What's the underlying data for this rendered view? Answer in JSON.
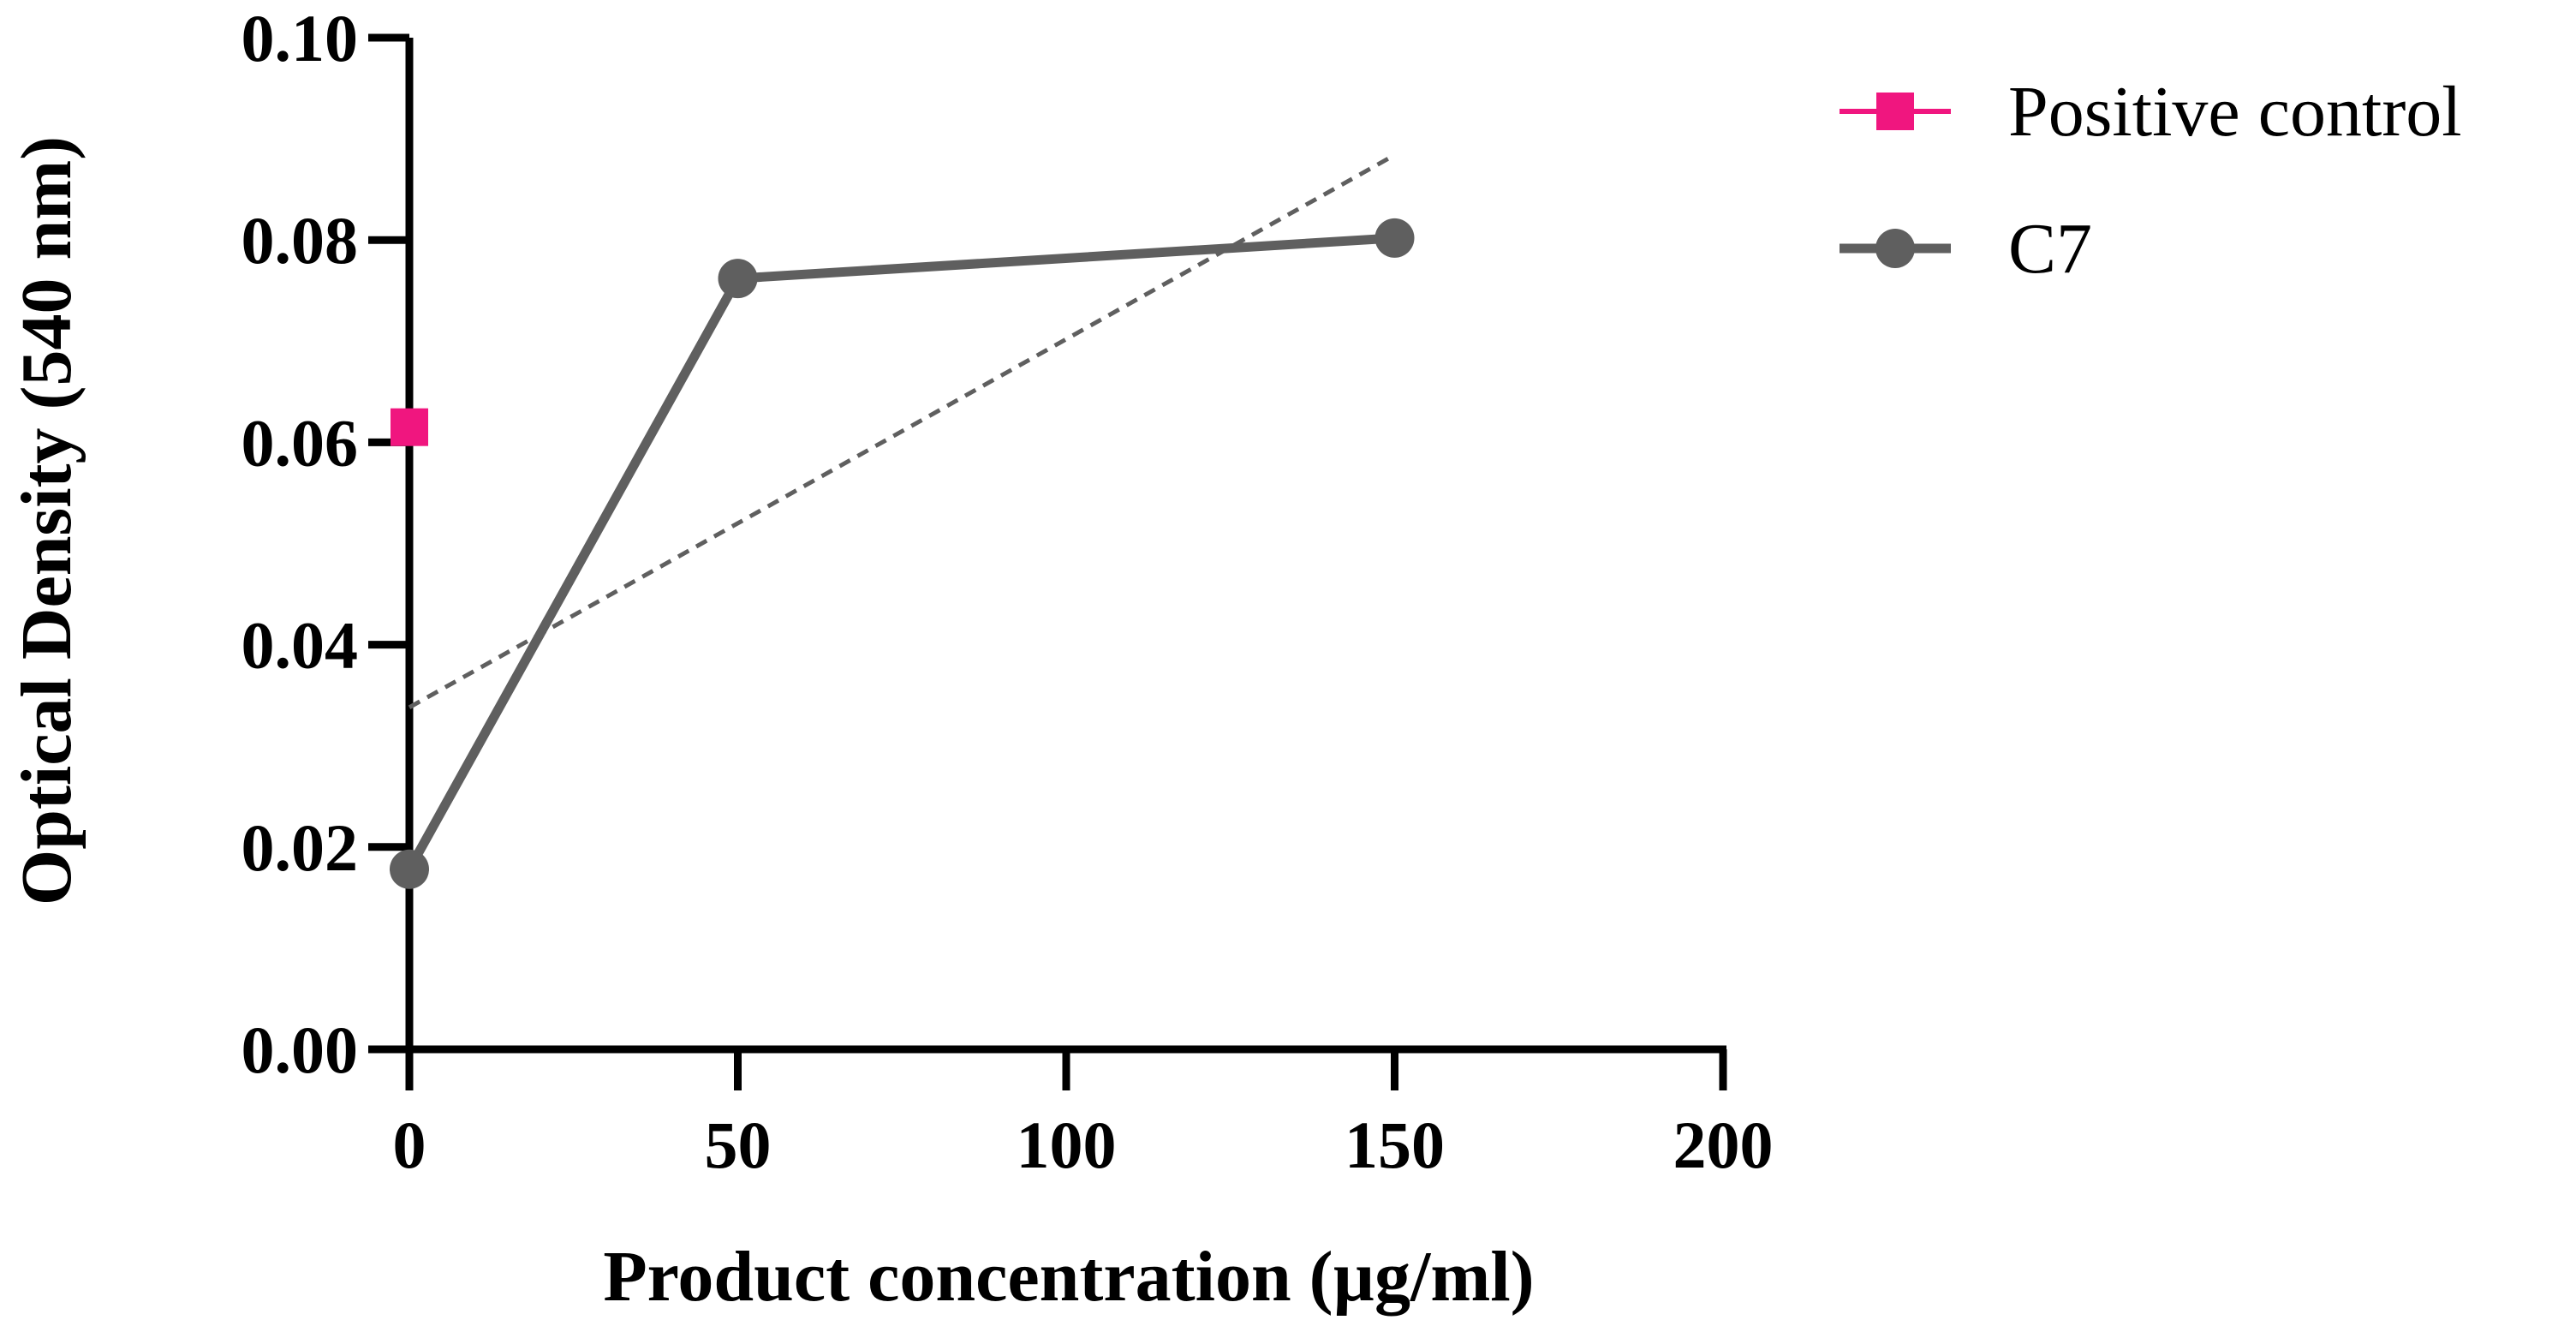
{
  "chart_data": {
    "type": "line",
    "title": "",
    "xlabel": "Product concentration (µg/ml)",
    "ylabel": "Optical Density (540 nm)",
    "xlim": [
      0,
      200
    ],
    "ylim": [
      0,
      0.1
    ],
    "xticks": [
      0,
      50,
      100,
      150,
      200
    ],
    "xtick_labels": [
      "0",
      "50",
      "100",
      "150",
      "200"
    ],
    "yticks": [
      0,
      0.02,
      0.04,
      0.06,
      0.08,
      0.1
    ],
    "ytick_labels": [
      "0.00",
      "0.02",
      "0.04",
      "0.06",
      "0.08",
      "0.10"
    ],
    "grid": false,
    "legend_position": "top-right outside",
    "series": [
      {
        "name": "Positive control",
        "marker": "square",
        "color": "#f0167f",
        "x": [
          0
        ],
        "values": [
          0.0615
        ]
      },
      {
        "name": "C7",
        "marker": "circle",
        "color": "#5f5f5f",
        "x": [
          0,
          50,
          150
        ],
        "values": [
          0.0178,
          0.0762,
          0.0802
        ]
      }
    ],
    "trendline": {
      "style": "dashed",
      "color": "#5f5f5f",
      "x": [
        0,
        150
      ],
      "values": [
        0.0338,
        0.0884
      ]
    }
  }
}
